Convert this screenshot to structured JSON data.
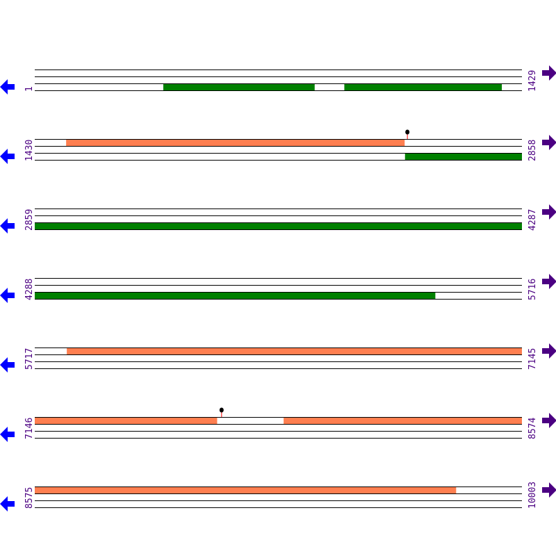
{
  "colors": {
    "line": "#000000",
    "forward_feature": "#ff7f50",
    "reverse_feature": "#008000",
    "left_arrow": "#0000ff",
    "right_arrow": "#4b0082",
    "number": "#4b0082",
    "marker_stem": "#ff0000",
    "marker_head": "#000000"
  },
  "sequence": {
    "length": 10003,
    "bp_per_row": 1429
  },
  "rows": [
    {
      "start": "1",
      "end": "1429"
    },
    {
      "start": "1430",
      "end": "2858"
    },
    {
      "start": "2859",
      "end": "4287"
    },
    {
      "start": "4288",
      "end": "5716"
    },
    {
      "start": "5717",
      "end": "7145"
    },
    {
      "start": "7146",
      "end": "8574"
    },
    {
      "start": "8575",
      "end": "10003"
    }
  ],
  "features": [
    {
      "strand": "reverse",
      "start": 378,
      "end": 821
    },
    {
      "strand": "reverse",
      "start": 909,
      "end": 1370
    },
    {
      "strand": "forward",
      "start": 1522,
      "end": 2514
    },
    {
      "strand": "reverse",
      "start": 2516,
      "end": 5462
    },
    {
      "strand": "forward",
      "start": 5811,
      "end": 7680
    },
    {
      "strand": "forward",
      "start": 7876,
      "end": 9810
    }
  ],
  "markers": [
    {
      "position": 2523
    },
    {
      "position": 7694
    }
  ],
  "icons": {
    "left": "arrow-left-icon",
    "right": "arrow-right-icon"
  }
}
